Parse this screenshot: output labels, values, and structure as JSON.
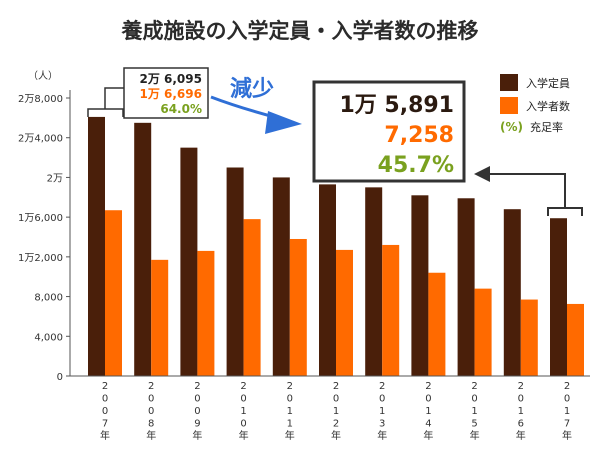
{
  "chart_data": {
    "type": "bar",
    "title": "養成施設の入学定員・入学者数の推移",
    "y_unit": "（人）",
    "ylim": [
      0,
      28000
    ],
    "yticks": [
      {
        "value": 0,
        "label": "0"
      },
      {
        "value": 4000,
        "label": "4,000"
      },
      {
        "value": 8000,
        "label": "8,000"
      },
      {
        "value": 12000,
        "label": "1万2,000"
      },
      {
        "value": 16000,
        "label": "1万6,000"
      },
      {
        "value": 20000,
        "label": "2万"
      },
      {
        "value": 24000,
        "label": "2万4,000"
      },
      {
        "value": 28000,
        "label": "2万8,000"
      }
    ],
    "categories": [
      "2007年",
      "2008年",
      "2009年",
      "2010年",
      "2011年",
      "2012年",
      "2013年",
      "2014年",
      "2015年",
      "2016年",
      "2017年"
    ],
    "series": [
      {
        "name": "入学定員",
        "color": "#4a1f0a",
        "values": [
          26095,
          25500,
          23000,
          21000,
          20000,
          19300,
          19000,
          18200,
          17900,
          16800,
          15891
        ]
      },
      {
        "name": "入学者数",
        "color": "#ff6a00",
        "values": [
          16696,
          11700,
          12600,
          15800,
          13800,
          12700,
          13200,
          10400,
          8800,
          7700,
          7258
        ]
      }
    ],
    "legend": {
      "position": "top-right",
      "items": [
        {
          "label": "入学定員",
          "color": "#4a1f0a"
        },
        {
          "label": "入学者数",
          "color": "#ff6a00"
        }
      ],
      "rate_symbol": "(%)",
      "rate_label": "充足率",
      "rate_color": "#7aa11f"
    },
    "annotations": {
      "first": {
        "capacity": "2万 6,095",
        "enrolled": "1万 6,696",
        "rate": "64.0%"
      },
      "last": {
        "capacity": "1万 5,891",
        "enrolled": "7,258",
        "rate": "45.7%"
      },
      "decrease_label": "減少",
      "decrease_color": "#2f6fd6"
    }
  }
}
